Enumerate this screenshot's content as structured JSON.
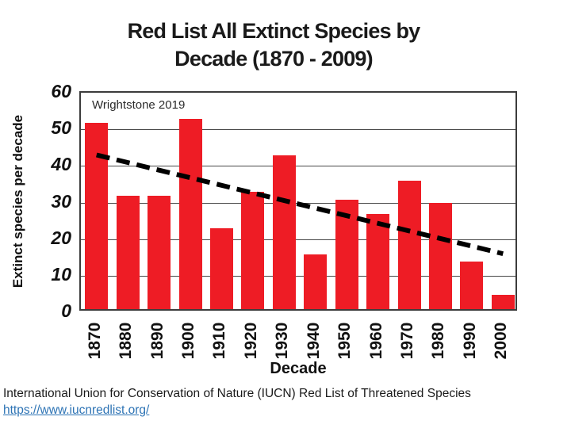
{
  "title": {
    "line1": "Red List All Extinct Species by",
    "line2": "Decade (1870 - 2009)"
  },
  "annotation": "Wrightstone 2019",
  "chart_data": {
    "type": "bar",
    "title": "Red List All Extinct Species by Decade (1870 - 2009)",
    "categories": [
      "1870",
      "1880",
      "1890",
      "1900",
      "1910",
      "1920",
      "1930",
      "1940",
      "1950",
      "1960",
      "1970",
      "1980",
      "1990",
      "2000"
    ],
    "values": [
      51,
      31,
      31,
      52,
      22,
      32,
      42,
      15,
      30,
      26,
      35,
      29,
      13,
      4
    ],
    "xlabel": "Decade",
    "ylabel": "Extinct species per decade",
    "ylim": [
      0,
      60
    ],
    "ytick_step": 10,
    "grid": true,
    "legend": "none",
    "bar_color": "#ee1c25",
    "trendline": {
      "style": "dashed",
      "color": "#000000",
      "start_value": 43,
      "end_value": 16
    }
  },
  "footer": {
    "caption": "International Union for Conservation of Nature (IUCN) Red List of Threatened Species",
    "link": "https://www.iucnredlist.org/",
    "link_color": "#2e74b5"
  }
}
